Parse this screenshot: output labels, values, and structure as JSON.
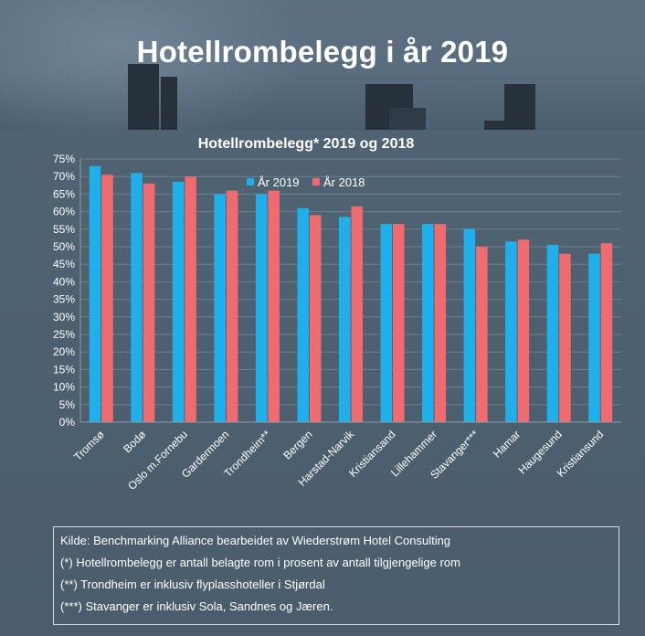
{
  "header": {
    "title": "Hotellrombelegg i år 2019"
  },
  "chart_data": {
    "type": "bar",
    "title": "Hotellrombelegg* 2019 og 2018",
    "xlabel": "",
    "ylabel": "",
    "ylim": [
      0,
      75
    ],
    "yticks": [
      "0%",
      "5%",
      "10%",
      "15%",
      "20%",
      "25%",
      "30%",
      "35%",
      "40%",
      "45%",
      "50%",
      "55%",
      "60%",
      "65%",
      "70%",
      "75%"
    ],
    "legend_position": "top-right",
    "categories": [
      "Tromsø",
      "Bodø",
      "Oslo m.Fornebu",
      "Gardermoen",
      "Trondheim**",
      "Bergen",
      "Harstad-Narvik",
      "Kristiansand",
      "Lillehammer",
      "Stavanger***",
      "Hamar",
      "Haugesund",
      "Kristiansund"
    ],
    "series": [
      {
        "name": "År 2019",
        "color": "#1fb0ec",
        "values": [
          73,
          71,
          68.5,
          65,
          65,
          61,
          58.5,
          56.5,
          56.5,
          55,
          51.5,
          50.5,
          48
        ]
      },
      {
        "name": "År 2018",
        "color": "#f06b6f",
        "values": [
          70.5,
          68,
          70,
          66,
          66,
          59,
          61.5,
          56.5,
          56.5,
          50,
          52,
          48,
          51
        ]
      }
    ]
  },
  "notes": {
    "source": "Kilde: Benchmarking Alliance bearbeidet av Wiederstrøm Hotel Consulting",
    "note1": "(*) Hotellrombelegg er antall belagte rom i prosent av antall tilgjengelige rom",
    "note2": "(**) Trondheim er inklusiv flyplasshoteller i Stjørdal",
    "note3": "(***) Stavanger er inklusiv Sola, Sandnes og Jæren."
  }
}
